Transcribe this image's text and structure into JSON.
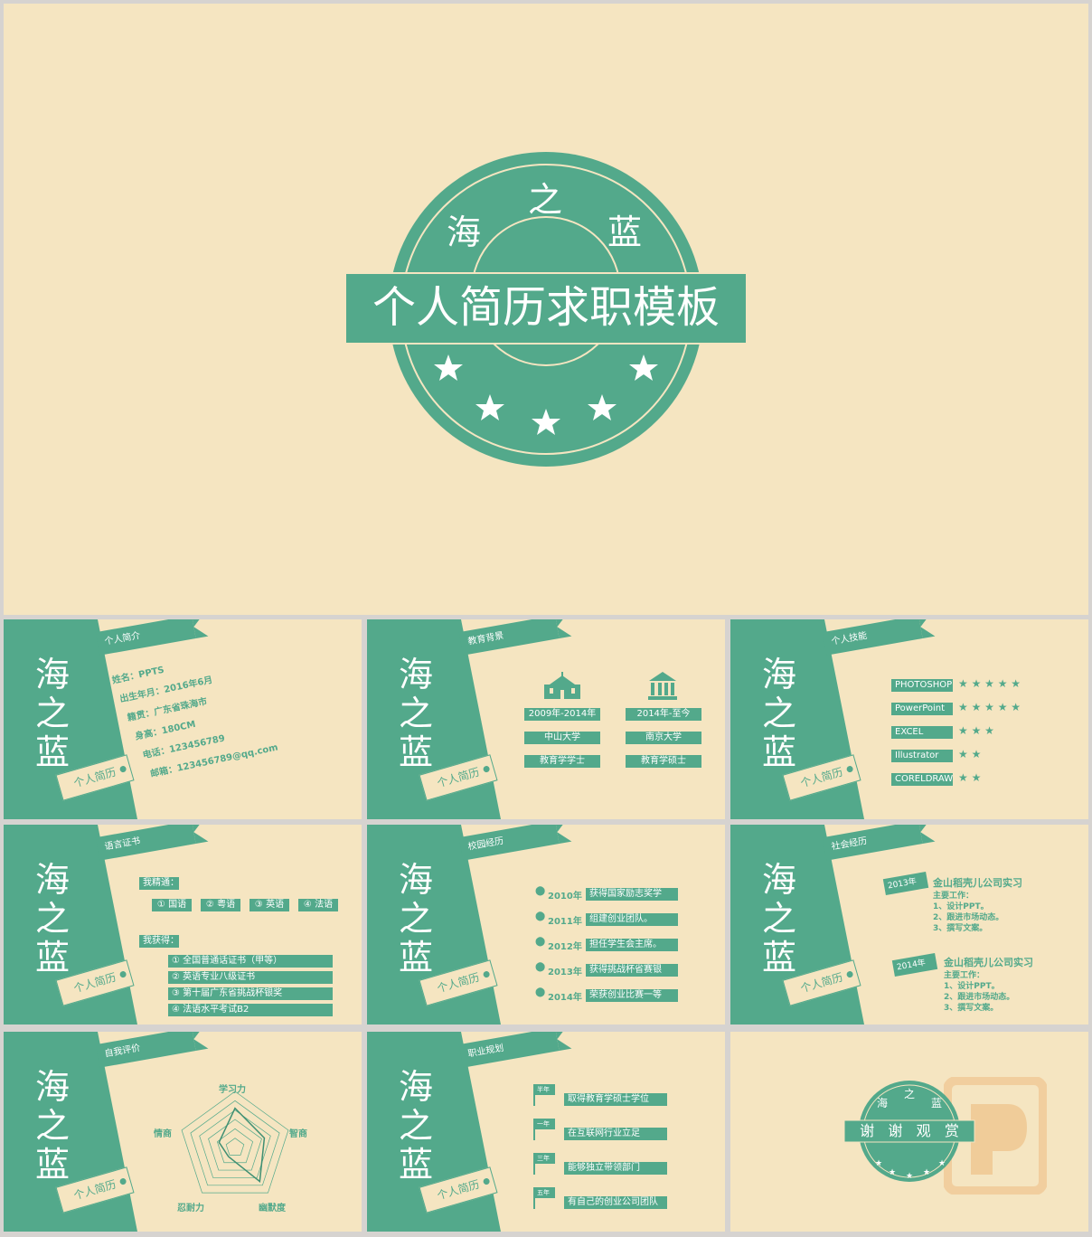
{
  "colors": {
    "green": "#53a98b",
    "cream": "#f5e5c1",
    "white": "#ffffff"
  },
  "hero": {
    "char1": "海",
    "char2": "之",
    "char3": "蓝",
    "title": "个人简历求职模板"
  },
  "common": {
    "vchars": [
      "海",
      "之",
      "蓝"
    ],
    "tag": "个人简历"
  },
  "s1": {
    "ribbon": "个人简介",
    "lines": [
      "姓名：PPTS",
      "出生年月：2016年6月",
      "籍贯：广东省珠海市",
      "身高：180CM",
      "电话：123456789",
      "邮箱：123456789@qq.com"
    ]
  },
  "s2": {
    "ribbon": "教育背景",
    "left": [
      "2009年-2014年",
      "中山大学",
      "教育学学士"
    ],
    "right": [
      "2014年-至今",
      "南京大学",
      "教育学硕士"
    ]
  },
  "s3": {
    "ribbon": "个人技能",
    "skills": [
      {
        "name": "PHOTOSHOP",
        "stars": "★ ★ ★ ★ ★"
      },
      {
        "name": "PowerPoint",
        "stars": "★ ★ ★ ★ ★"
      },
      {
        "name": "EXCEL",
        "stars": "★ ★ ★"
      },
      {
        "name": "Illustrator",
        "stars": "★ ★"
      },
      {
        "name": "CORELDRAW",
        "stars": "★ ★"
      }
    ]
  },
  "s4": {
    "ribbon": "语言证书",
    "h1": "我精通：",
    "langs": [
      "① 国语",
      "② 粤语",
      "③ 英语",
      "④ 法语"
    ],
    "h2": "我获得：",
    "certs": [
      "① 全国普通话证书（甲等）",
      "② 英语专业八级证书",
      "③ 第十届广东省挑战杯银奖",
      "④ 法语水平考试B2"
    ]
  },
  "s5": {
    "ribbon": "校园经历",
    "items": [
      {
        "year": "2010年",
        "text": "获得国家励志奖学"
      },
      {
        "year": "2011年",
        "text": "组建创业团队。"
      },
      {
        "year": "2012年",
        "text": "担任学生会主席。"
      },
      {
        "year": "2013年",
        "text": "获得挑战杯省赛银"
      },
      {
        "year": "2014年",
        "text": "荣获创业比赛一等"
      }
    ]
  },
  "s6": {
    "ribbon": "社会经历",
    "items": [
      {
        "year": "2013年",
        "title": "金山稻壳儿公司实习",
        "sub": "主要工作：",
        "lines": [
          "1、设计PPT。",
          "2、跟进市场动态。",
          "3、撰写文案。"
        ]
      },
      {
        "year": "2014年",
        "title": "金山稻壳儿公司实习",
        "sub": "主要工作：",
        "lines": [
          "1、设计PPT。",
          "2、跟进市场动态。",
          "3、撰写文案。"
        ]
      }
    ]
  },
  "s7": {
    "ribbon": "自我评价",
    "labels": [
      "学习力",
      "智商",
      "幽默度",
      "忍耐力",
      "情商"
    ],
    "levels": [
      0.7,
      0.55,
      0.75,
      0.2,
      0.3
    ]
  },
  "s8": {
    "ribbon": "职业规划",
    "items": [
      {
        "flag": "半年",
        "text": "取得教育学硕士学位"
      },
      {
        "flag": "一年",
        "text": "在互联网行业立足"
      },
      {
        "flag": "三年",
        "text": "能够独立带领部门"
      },
      {
        "flag": "五年",
        "text": "有自己的创业公司团队"
      }
    ]
  },
  "s9": {
    "c1": "海",
    "c2": "之",
    "c3": "蓝",
    "thanks": "谢   谢   观   赏"
  }
}
